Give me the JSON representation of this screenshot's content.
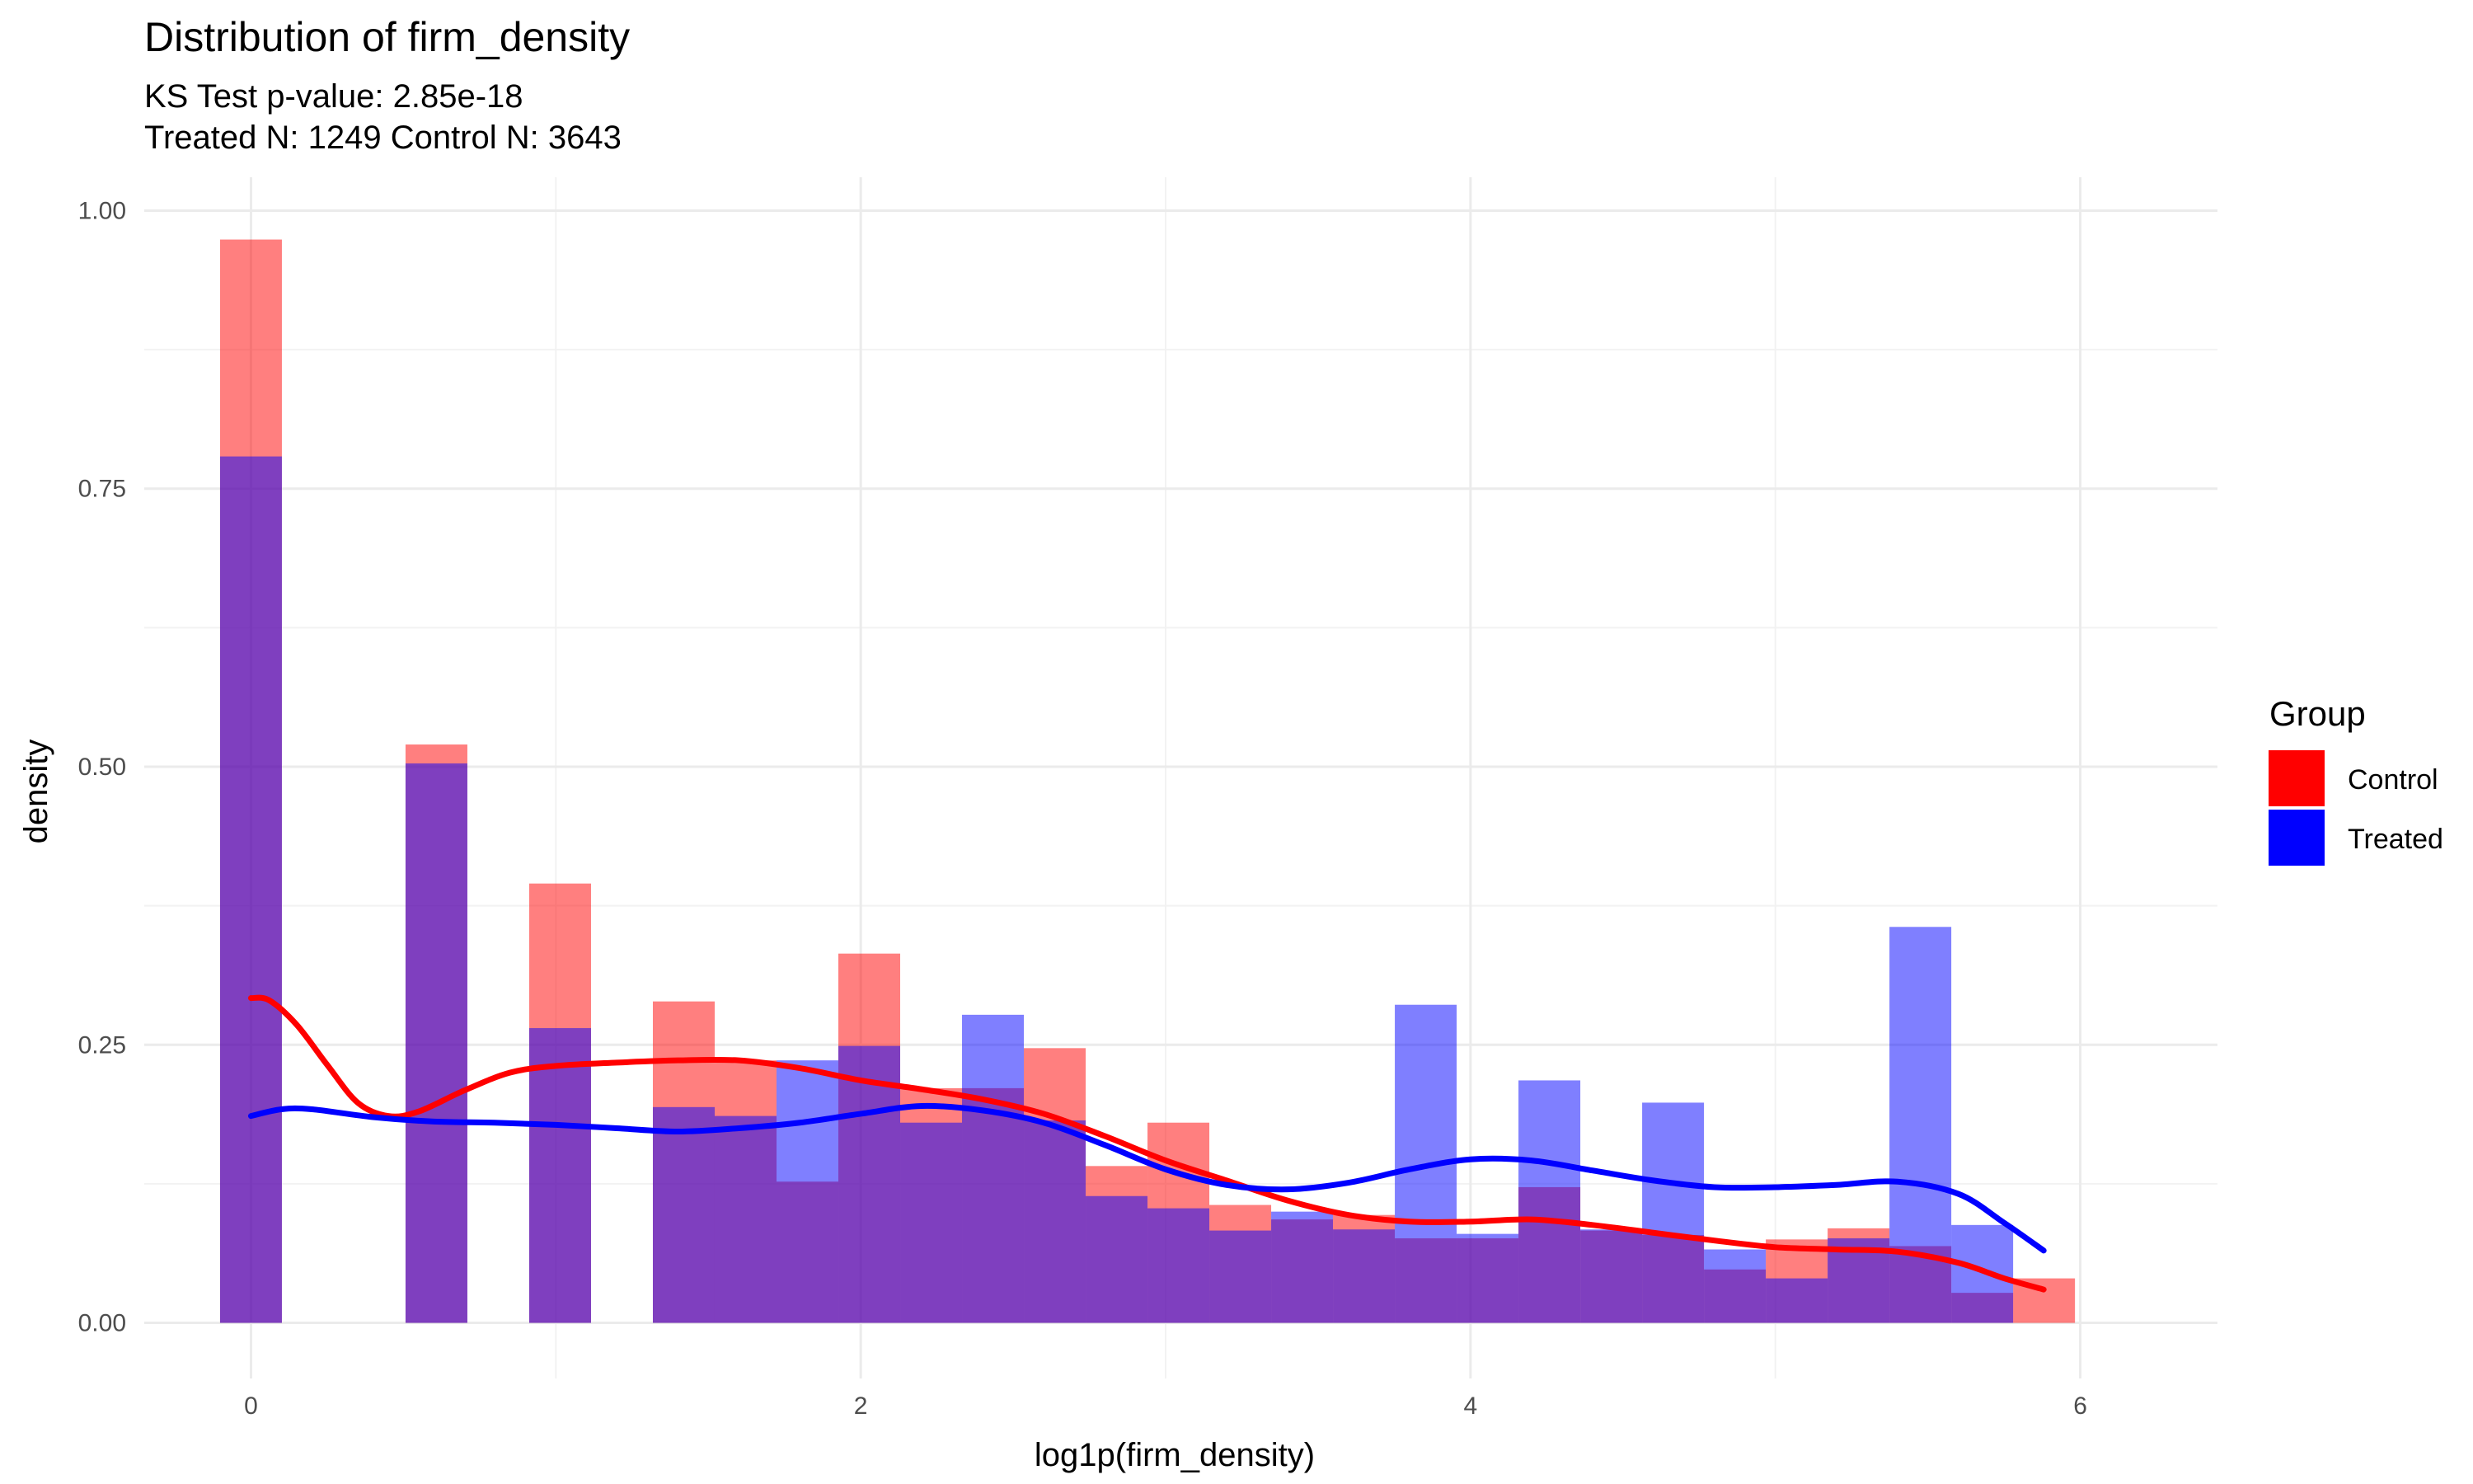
{
  "chart_data": {
    "type": "bar",
    "title": "Distribution of firm_density",
    "subtitle_lines": [
      "KS Test p-value: 2.85e-18",
      "Treated N: 1249 Control N: 3643"
    ],
    "xlabel": "log1p(firm_density)",
    "ylabel": "density",
    "xlim": [
      -0.35,
      6.45
    ],
    "ylim": [
      -0.05,
      1.03
    ],
    "x_ticks": [
      0,
      2,
      4,
      6
    ],
    "x_tick_labels": [
      "0",
      "2",
      "4",
      "6"
    ],
    "y_ticks": [
      0,
      0.25,
      0.5,
      0.75,
      1
    ],
    "y_tick_labels": [
      "0.00",
      "0.25",
      "0.50",
      "0.75",
      "1.00"
    ],
    "grid": true,
    "legend": {
      "title": "Group",
      "position": "right",
      "entries": [
        {
          "label": "Control",
          "color": "#ff0000"
        },
        {
          "label": "Treated",
          "color": "#0000ff"
        }
      ]
    },
    "bin_width": 0.2028,
    "bin_centers": [
      0,
      0.2028,
      0.4056,
      0.6084,
      0.8112,
      1.014,
      1.2168,
      1.4196,
      1.6224,
      1.8252,
      2.028,
      2.2308,
      2.4336,
      2.6364,
      2.8392,
      3.042,
      3.2448,
      3.4476,
      3.6504,
      3.8532,
      4.056,
      4.2588,
      4.4616,
      4.6644,
      4.8672,
      5.07,
      5.2728,
      5.4756,
      5.6784,
      5.8812
    ],
    "series": [
      {
        "name": "Control",
        "color": "#ff0000",
        "values": [
          0.974,
          0,
          0,
          0.52,
          0,
          0.395,
          0,
          0.289,
          0.236,
          0.127,
          0.332,
          0.211,
          0.211,
          0.247,
          0.141,
          0.18,
          0.106,
          0.093,
          0.097,
          0.076,
          0.076,
          0.122,
          0.083,
          0.079,
          0.048,
          0.075,
          0.085,
          0.069,
          0.027,
          0.04
        ]
      },
      {
        "name": "Treated",
        "color": "#0000ff",
        "values": [
          0.779,
          0,
          0,
          0.503,
          0,
          0.265,
          0,
          0.194,
          0.186,
          0.236,
          0.249,
          0.18,
          0.277,
          0.182,
          0.114,
          0.103,
          0.083,
          0.1,
          0.084,
          0.286,
          0.08,
          0.218,
          0.084,
          0.198,
          0.066,
          0.04,
          0.076,
          0.356,
          0.088,
          0
        ]
      }
    ],
    "density_curves": [
      {
        "name": "Control",
        "color": "#ff0000",
        "x": [
          0,
          0.06,
          0.15,
          0.25,
          0.35,
          0.45,
          0.55,
          0.7,
          0.85,
          1.0,
          1.2,
          1.4,
          1.6,
          1.8,
          2.0,
          2.2,
          2.4,
          2.6,
          2.8,
          3.0,
          3.2,
          3.4,
          3.6,
          3.8,
          4.0,
          4.2,
          4.4,
          4.6,
          4.8,
          5.0,
          5.2,
          5.4,
          5.6,
          5.75,
          5.88
        ],
        "y": [
          0.292,
          0.29,
          0.268,
          0.232,
          0.198,
          0.186,
          0.19,
          0.209,
          0.225,
          0.231,
          0.234,
          0.236,
          0.236,
          0.229,
          0.218,
          0.21,
          0.201,
          0.188,
          0.168,
          0.146,
          0.128,
          0.11,
          0.097,
          0.091,
          0.091,
          0.093,
          0.088,
          0.081,
          0.074,
          0.068,
          0.066,
          0.064,
          0.054,
          0.04,
          0.03
        ]
      },
      {
        "name": "Treated",
        "color": "#0000ff",
        "x": [
          0,
          0.1,
          0.2,
          0.4,
          0.6,
          0.8,
          1.0,
          1.2,
          1.4,
          1.6,
          1.8,
          2.0,
          2.2,
          2.4,
          2.6,
          2.8,
          3.0,
          3.2,
          3.4,
          3.6,
          3.8,
          4.0,
          4.2,
          4.4,
          4.6,
          4.8,
          5.0,
          5.2,
          5.4,
          5.6,
          5.75,
          5.88
        ],
        "y": [
          0.186,
          0.192,
          0.192,
          0.185,
          0.181,
          0.18,
          0.178,
          0.175,
          0.172,
          0.175,
          0.18,
          0.188,
          0.195,
          0.191,
          0.18,
          0.16,
          0.138,
          0.124,
          0.12,
          0.126,
          0.138,
          0.147,
          0.146,
          0.137,
          0.128,
          0.122,
          0.122,
          0.124,
          0.127,
          0.116,
          0.09,
          0.065
        ]
      }
    ]
  }
}
